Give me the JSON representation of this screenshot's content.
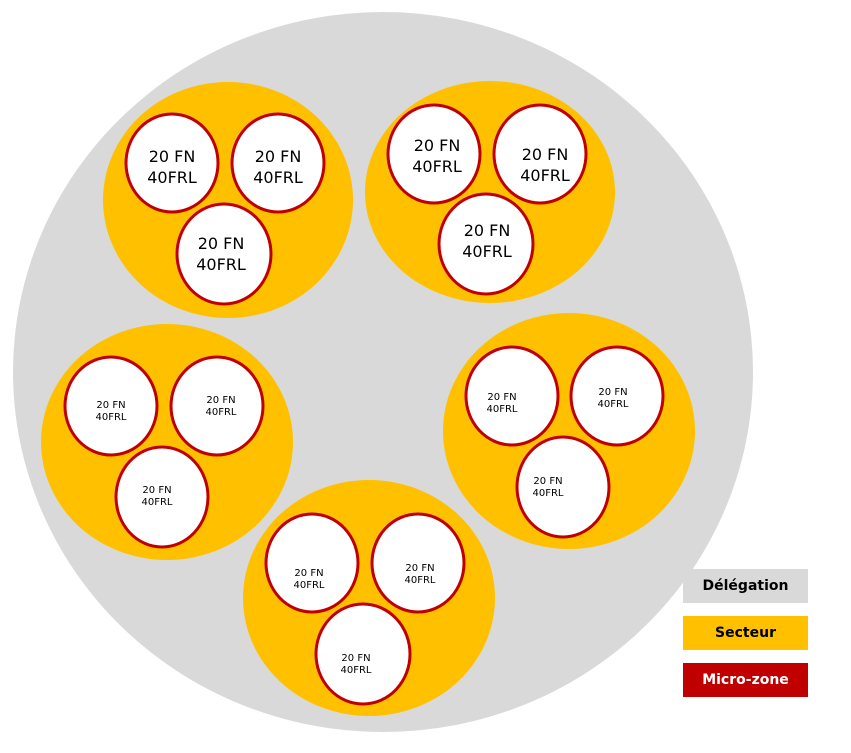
{
  "colors": {
    "delegation": "#d9d9d9",
    "secteur": "#ffc000",
    "microzone_fill": "#ffffff",
    "microzone_border": "#c00000",
    "legend_text_dark": "#000000",
    "legend_text_light": "#ffffff"
  },
  "sectors": [
    {
      "microzones": [
        {
          "line1": "20 FN",
          "line2": "40FRL"
        },
        {
          "line1": "20 FN",
          "line2": "40FRL"
        },
        {
          "line1": "20 FN",
          "line2": "40FRL"
        }
      ]
    },
    {
      "microzones": [
        {
          "line1": "20 FN",
          "line2": "40FRL"
        },
        {
          "line1": "20 FN",
          "line2": "40FRL"
        },
        {
          "line1": "20 FN",
          "line2": "40FRL"
        }
      ]
    },
    {
      "microzones": [
        {
          "line1": "20 FN",
          "line2": "40FRL"
        },
        {
          "line1": "20 FN",
          "line2": "40FRL"
        },
        {
          "line1": "20 FN",
          "line2": "40FRL"
        }
      ]
    },
    {
      "microzones": [
        {
          "line1": "20 FN",
          "line2": "40FRL"
        },
        {
          "line1": "20 FN",
          "line2": "40FRL"
        },
        {
          "line1": "20 FN",
          "line2": "40FRL"
        }
      ]
    },
    {
      "microzones": [
        {
          "line1": "20 FN",
          "line2": "40FRL"
        },
        {
          "line1": "20 FN",
          "line2": "40FRL"
        },
        {
          "line1": "20 FN",
          "line2": "40FRL"
        }
      ]
    }
  ],
  "legend": {
    "delegation": "Délégation",
    "secteur": "Secteur",
    "microzone": "Micro-zone"
  }
}
